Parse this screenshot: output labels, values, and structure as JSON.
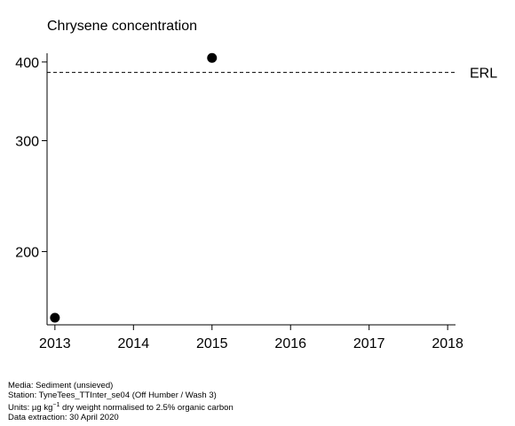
{
  "chart_data": {
    "type": "scatter",
    "title": "Chrysene concentration",
    "xlabel": "",
    "ylabel": "",
    "xlim": [
      2012.9,
      2018.1
    ],
    "ylim": [
      153,
      413
    ],
    "x_ticks": [
      "2013",
      "2014",
      "2015",
      "2016",
      "2017",
      "2018"
    ],
    "y_ticks": [
      "200",
      "300",
      "400"
    ],
    "series": [
      {
        "points": [
          {
            "x": 2013,
            "y": 157
          },
          {
            "x": 2015,
            "y": 406
          }
        ]
      }
    ],
    "reference_line": {
      "label": "ERL",
      "y": 385,
      "style": "dashed"
    },
    "grid": false,
    "y_scale": "log"
  },
  "footer": {
    "media": "Media: Sediment (unsieved)",
    "station": "Station: TyneTees_TTInter_se04 (Off Humber / Wash 3)",
    "units_prefix": "Units:  µg kg",
    "units_exp": "−1",
    "units_suffix": " dry weight normalised to 2.5% organic carbon",
    "extraction": "Data extraction: 30 April 2020"
  }
}
